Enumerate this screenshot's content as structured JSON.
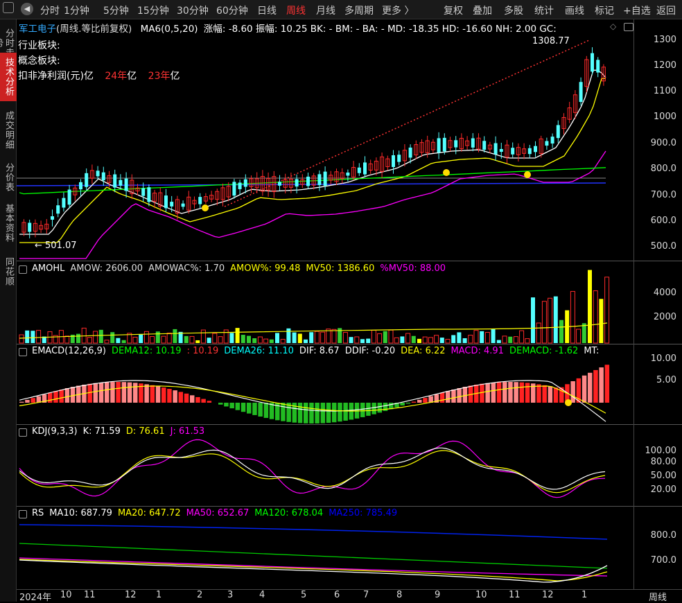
{
  "toolbar": {
    "tabs": [
      "分时",
      "1分钟",
      "5分钟",
      "15分钟",
      "30分钟",
      "60分钟",
      "日线",
      "周线",
      "月线",
      "多周期",
      "更多 〉"
    ],
    "active_tab": "周线",
    "right_buttons": [
      "复权",
      "叠加",
      "多股",
      "统计",
      "画线",
      "标记",
      "+自选",
      "返回"
    ]
  },
  "left_nav": [
    "分时走势",
    "技术分析",
    "成交明细",
    "分价表",
    "基本资料",
    "同花顺"
  ],
  "left_nav_active": "技术分析",
  "main_pane": {
    "title": "军工电子",
    "period": "(周线.等比前复权)",
    "ma_label": "MA6(0,5,20)",
    "stats": "涨幅: -8.60  振幅: 10.25  BK: -  BM: -  BA: -  MD: -18.35  HD: -16.60  NH: 2.00  GC:",
    "info_lines": [
      "行业板块:",
      "概念板块:",
      "扣非净利润(元)"
    ],
    "profit_values": [
      "亿",
      "24年",
      "亿",
      "23年",
      "亿"
    ],
    "high_label": "1308.77",
    "low_label": "501.07",
    "yticks": [
      "1300",
      "1200",
      "1100",
      "1000",
      "900.0",
      "800.0",
      "700.0",
      "600.0",
      "500.0"
    ]
  },
  "amohl_pane": {
    "name": "AMOHL",
    "items": [
      {
        "text": "AMOW: 2606.00",
        "color": "#dddddd"
      },
      {
        "text": "AMOWAC%: 1.70",
        "color": "#dddddd"
      },
      {
        "text": "AMOW%: 99.48",
        "color": "#ffff00"
      },
      {
        "text": "MV50: 1386.60",
        "color": "#ffff00"
      },
      {
        "text": "%MV50: 88.00",
        "color": "#ff00ff"
      }
    ],
    "yticks": [
      "4000",
      "2000"
    ]
  },
  "emacd_pane": {
    "name": "EMACD(12,26,9)",
    "items": [
      {
        "text": "DEMA12: 10.19",
        "color": "#00ff00"
      },
      {
        "text": ": 10.19",
        "color": "#ff3333"
      },
      {
        "text": "DEMA26: 11.10",
        "color": "#00ffff"
      },
      {
        "text": "DIF: 8.67",
        "color": "#ffffff"
      },
      {
        "text": "DDIF: -0.20",
        "color": "#ffffff"
      },
      {
        "text": "DEA: 6.22",
        "color": "#ffff00"
      },
      {
        "text": "MACD: 4.91",
        "color": "#ff00ff"
      },
      {
        "text": "DEMACD: -1.62",
        "color": "#00ff00"
      },
      {
        "text": "MT:",
        "color": "#ffffff"
      }
    ],
    "yticks": [
      "10.00",
      "5.00"
    ]
  },
  "kdj_pane": {
    "name": "KDJ(9,3,3)",
    "items": [
      {
        "text": "K: 71.59",
        "color": "#ffffff"
      },
      {
        "text": "D: 76.61",
        "color": "#ffff00"
      },
      {
        "text": "J: 61.53",
        "color": "#ff00ff"
      }
    ],
    "yticks": [
      "100.00",
      "80.00",
      "50.00",
      "20.00"
    ]
  },
  "rs_pane": {
    "name": "RS",
    "items": [
      {
        "text": "MA10: 687.79",
        "color": "#ffffff"
      },
      {
        "text": "MA20: 647.72",
        "color": "#ffff00"
      },
      {
        "text": "MA50: 652.67",
        "color": "#ff00ff"
      },
      {
        "text": "MA120: 678.04",
        "color": "#00ff00"
      },
      {
        "text": "MA250: 785.49",
        "color": "#0000ff"
      }
    ],
    "yticks": [
      "800.0",
      "700.0"
    ]
  },
  "bottom_axis": {
    "labels": [
      "2024年",
      "10",
      "11",
      "12",
      "1",
      "2",
      "3",
      "4",
      "5",
      "6",
      "7",
      "8",
      "9",
      "10",
      "11",
      "12",
      "1"
    ],
    "period": "周线"
  },
  "colors": {
    "up": "#ff2a2a",
    "down": "#54ffff",
    "ma5": "#ffffff",
    "ma10": "#ffff00",
    "ma20": "#ff00ff",
    "ma60": "#00ff00",
    "ma120": "#ff6666",
    "ma250": "#0044ff"
  }
}
